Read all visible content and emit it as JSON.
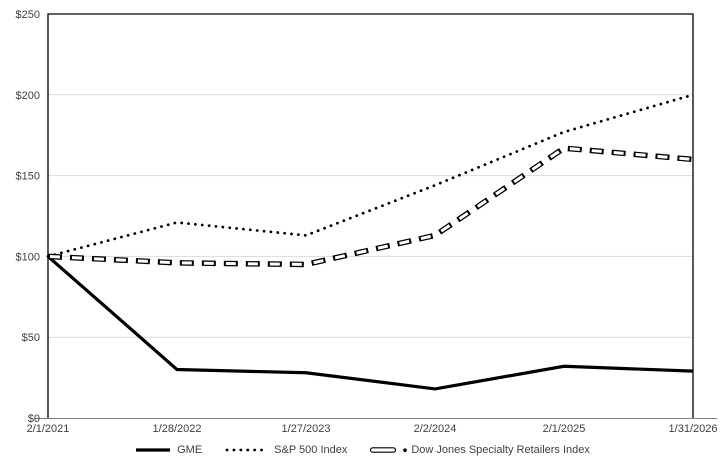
{
  "chart_data": {
    "type": "line",
    "title": "",
    "xlabel": "",
    "ylabel": "",
    "categories": [
      "2/1/2021",
      "1/28/2022",
      "1/27/2023",
      "2/2/2024",
      "2/1/2025",
      "1/31/2026"
    ],
    "series": [
      {
        "name": "GME",
        "style": "solid",
        "values": [
          100,
          30,
          28,
          18,
          32,
          29
        ]
      },
      {
        "name": "S&P 500 Index",
        "style": "dotted",
        "values": [
          100,
          121,
          113,
          144,
          177,
          200
        ]
      },
      {
        "name": "Dow Jones Specialty Retailers Index",
        "style": "outlined-dash",
        "values": [
          100,
          96,
          95,
          113,
          167,
          160
        ]
      }
    ],
    "ylim": [
      0,
      250
    ],
    "y_ticks": [
      {
        "label": "$0",
        "value": 0
      },
      {
        "label": "$50",
        "value": 50
      },
      {
        "label": "$100",
        "value": 100
      },
      {
        "label": "$150",
        "value": 150
      },
      {
        "label": "$200",
        "value": 200
      },
      {
        "label": "$250",
        "value": 250
      }
    ],
    "grid": true,
    "legend_position": "bottom",
    "colors": {
      "series": "#000000",
      "grid": "#d9d9d9",
      "axis_text": "#404040",
      "axis_line": "#808080",
      "frame": "#000000",
      "background": "#ffffff"
    }
  }
}
